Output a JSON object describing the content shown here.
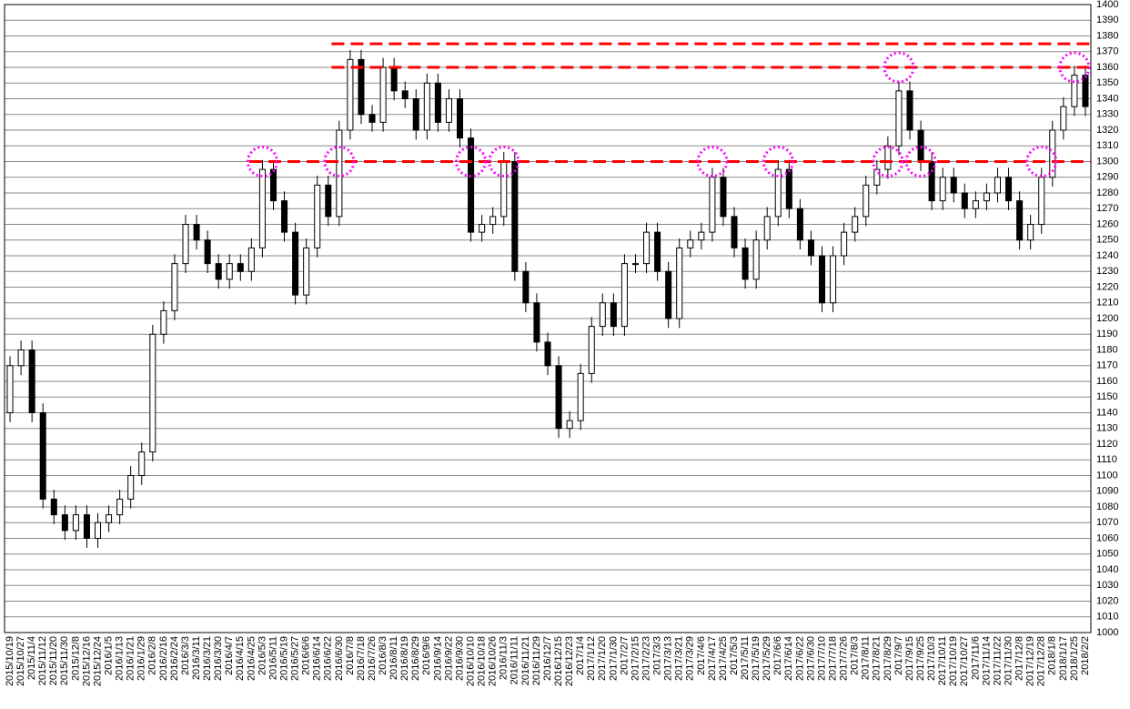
{
  "chart_data": {
    "type": "candlestick",
    "categories": [
      "2015/10/19",
      "2015/10/27",
      "2015/11/4",
      "2015/11/12",
      "2015/11/20",
      "2015/11/30",
      "2015/12/8",
      "2015/12/16",
      "2015/12/24",
      "2016/1/5",
      "2016/1/13",
      "2016/1/21",
      "2016/1/29",
      "2016/2/8",
      "2016/2/16",
      "2016/2/24",
      "2016/3/3",
      "2016/3/11",
      "2016/3/21",
      "2016/3/30",
      "2016/4/7",
      "2016/4/15",
      "2016/4/25",
      "2016/5/3",
      "2016/5/11",
      "2016/5/19",
      "2016/5/27",
      "2016/6/6",
      "2016/6/14",
      "2016/6/22",
      "2016/6/30",
      "2016/7/8",
      "2016/7/18",
      "2016/7/26",
      "2016/8/3",
      "2016/8/11",
      "2016/8/19",
      "2016/8/29",
      "2016/9/6",
      "2016/9/14",
      "2016/9/22",
      "2016/9/30",
      "2016/10/10",
      "2016/10/18",
      "2016/10/26",
      "2016/11/3",
      "2016/11/11",
      "2016/11/21",
      "2016/11/29",
      "2016/12/7",
      "2016/12/15",
      "2016/12/23",
      "2017/1/4",
      "2017/1/12",
      "2017/1/20",
      "2017/1/30",
      "2017/2/7",
      "2017/2/15",
      "2017/2/23",
      "2017/3/3",
      "2017/3/13",
      "2017/3/21",
      "2017/3/29",
      "2017/4/6",
      "2017/4/17",
      "2017/4/25",
      "2017/5/3",
      "2017/5/11",
      "2017/5/19",
      "2017/5/29",
      "2017/6/6",
      "2017/6/14",
      "2017/6/22",
      "2017/6/30",
      "2017/7/10",
      "2017/7/18",
      "2017/7/26",
      "2017/8/3",
      "2017/8/11",
      "2017/8/21",
      "2017/8/29",
      "2017/9/7",
      "2017/9/15",
      "2017/9/25",
      "2017/10/3",
      "2017/10/11",
      "2017/10/19",
      "2017/10/27",
      "2017/11/6",
      "2017/11/14",
      "2017/11/22",
      "2017/11/30",
      "2017/12/8",
      "2017/12/19",
      "2017/12/28",
      "2018/1/8",
      "2018/1/17",
      "2018/1/25",
      "2018/2/2"
    ],
    "open": [
      1140,
      1170,
      1180,
      1140,
      1085,
      1075,
      1065,
      1075,
      1060,
      1070,
      1075,
      1085,
      1100,
      1115,
      1190,
      1205,
      1235,
      1260,
      1250,
      1235,
      1225,
      1235,
      1230,
      1245,
      1295,
      1275,
      1255,
      1215,
      1245,
      1285,
      1265,
      1320,
      1365,
      1330,
      1325,
      1360,
      1345,
      1340,
      1320,
      1350,
      1325,
      1340,
      1315,
      1255,
      1260,
      1265,
      1300,
      1230,
      1210,
      1185,
      1170,
      1130,
      1135,
      1165,
      1195,
      1210,
      1195,
      1235,
      1235,
      1255,
      1230,
      1200,
      1245,
      1250,
      1255,
      1290,
      1265,
      1245,
      1225,
      1250,
      1265,
      1295,
      1270,
      1250,
      1240,
      1210,
      1240,
      1255,
      1265,
      1285,
      1295,
      1310,
      1345,
      1320,
      1300,
      1275,
      1290,
      1280,
      1270,
      1275,
      1280,
      1290,
      1275,
      1250,
      1260,
      1290,
      1320,
      1335,
      1355
    ],
    "high": [
      1176,
      1186,
      1186,
      1146,
      1091,
      1081,
      1081,
      1081,
      1076,
      1081,
      1091,
      1106,
      1121,
      1196,
      1211,
      1241,
      1266,
      1266,
      1256,
      1241,
      1241,
      1241,
      1251,
      1301,
      1301,
      1281,
      1261,
      1251,
      1291,
      1291,
      1326,
      1371,
      1371,
      1336,
      1366,
      1366,
      1351,
      1346,
      1356,
      1356,
      1346,
      1346,
      1321,
      1266,
      1271,
      1306,
      1306,
      1236,
      1216,
      1191,
      1176,
      1141,
      1171,
      1201,
      1216,
      1216,
      1241,
      1241,
      1261,
      1261,
      1236,
      1251,
      1256,
      1261,
      1296,
      1296,
      1271,
      1251,
      1256,
      1271,
      1301,
      1301,
      1276,
      1256,
      1246,
      1246,
      1261,
      1271,
      1291,
      1301,
      1316,
      1351,
      1351,
      1326,
      1306,
      1296,
      1296,
      1286,
      1281,
      1286,
      1296,
      1296,
      1281,
      1266,
      1296,
      1326,
      1341,
      1361,
      1361
    ],
    "low": [
      1134,
      1164,
      1134,
      1079,
      1069,
      1059,
      1059,
      1054,
      1054,
      1064,
      1069,
      1079,
      1094,
      1109,
      1184,
      1199,
      1229,
      1244,
      1229,
      1219,
      1219,
      1224,
      1224,
      1239,
      1269,
      1249,
      1209,
      1209,
      1239,
      1259,
      1259,
      1314,
      1324,
      1319,
      1319,
      1339,
      1334,
      1314,
      1314,
      1319,
      1319,
      1309,
      1249,
      1249,
      1254,
      1259,
      1224,
      1204,
      1179,
      1164,
      1124,
      1124,
      1129,
      1159,
      1189,
      1189,
      1189,
      1229,
      1229,
      1224,
      1194,
      1194,
      1239,
      1244,
      1249,
      1259,
      1239,
      1219,
      1219,
      1244,
      1259,
      1264,
      1244,
      1234,
      1204,
      1204,
      1234,
      1249,
      1259,
      1279,
      1289,
      1304,
      1314,
      1294,
      1269,
      1269,
      1274,
      1264,
      1264,
      1269,
      1274,
      1269,
      1244,
      1244,
      1254,
      1284,
      1314,
      1329,
      1329
    ],
    "close": [
      1170,
      1180,
      1140,
      1085,
      1075,
      1065,
      1075,
      1060,
      1070,
      1075,
      1085,
      1100,
      1115,
      1190,
      1205,
      1235,
      1260,
      1250,
      1235,
      1225,
      1235,
      1230,
      1245,
      1295,
      1275,
      1255,
      1215,
      1245,
      1285,
      1265,
      1320,
      1365,
      1330,
      1325,
      1360,
      1345,
      1340,
      1320,
      1350,
      1325,
      1340,
      1315,
      1255,
      1260,
      1265,
      1300,
      1230,
      1210,
      1185,
      1170,
      1130,
      1135,
      1165,
      1195,
      1210,
      1195,
      1235,
      1235,
      1255,
      1230,
      1200,
      1245,
      1250,
      1255,
      1290,
      1265,
      1245,
      1225,
      1250,
      1265,
      1295,
      1270,
      1250,
      1240,
      1210,
      1240,
      1255,
      1265,
      1285,
      1295,
      1310,
      1345,
      1320,
      1300,
      1275,
      1290,
      1280,
      1270,
      1275,
      1280,
      1290,
      1275,
      1250,
      1260,
      1290,
      1320,
      1335,
      1355,
      1335
    ],
    "up_color": "#ffffff",
    "down_color": "#000000",
    "ylim": [
      1000,
      1400
    ],
    "yticks": [
      1000,
      1010,
      1020,
      1030,
      1040,
      1050,
      1060,
      1070,
      1080,
      1090,
      1100,
      1110,
      1120,
      1130,
      1140,
      1150,
      1160,
      1170,
      1180,
      1190,
      1200,
      1210,
      1220,
      1230,
      1240,
      1250,
      1260,
      1270,
      1280,
      1290,
      1300,
      1310,
      1320,
      1330,
      1340,
      1350,
      1360,
      1370,
      1380,
      1390,
      1400
    ],
    "grid": true,
    "reference_lines": [
      1300,
      1360,
      1375
    ],
    "reference_color": "#ff0000",
    "highlight_color": "#ff00ff"
  }
}
